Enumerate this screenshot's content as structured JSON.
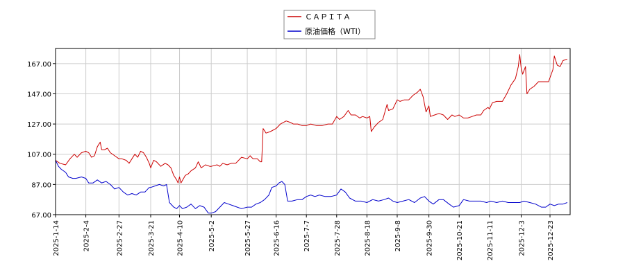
{
  "chart_data": {
    "type": "line",
    "ylim": [
      67,
      177
    ],
    "y_ticks": [
      "67.00",
      "87.00",
      "107.00",
      "127.00",
      "147.00",
      "167.00"
    ],
    "x_ticks": [
      "2025-1-14",
      "2025-2-4",
      "2025-2-27",
      "2025-3-21",
      "2025-4-10",
      "2025-5-2",
      "2025-5-27",
      "2025-6-16",
      "2025-7-7",
      "2025-7-28",
      "2025-8-18",
      "2025-9-8",
      "2025-9-30",
      "2025-10-21",
      "2025-11-11",
      "2025-12-3",
      "2025-12-23"
    ],
    "grid": true,
    "legend_position": "top-center",
    "series": [
      {
        "name": "ＣＡＰＩＴＡ",
        "color": "#cc0000",
        "points": [
          [
            "2025-1-14",
            103
          ],
          [
            "2025-1-17",
            101
          ],
          [
            "2025-1-21",
            100
          ],
          [
            "2025-1-24",
            104
          ],
          [
            "2025-1-27",
            107
          ],
          [
            "2025-1-29",
            105
          ],
          [
            "2025-2-1",
            108
          ],
          [
            "2025-2-4",
            109
          ],
          [
            "2025-2-6",
            108
          ],
          [
            "2025-2-8",
            105
          ],
          [
            "2025-2-10",
            106
          ],
          [
            "2025-2-12",
            112
          ],
          [
            "2025-2-14",
            115
          ],
          [
            "2025-2-15",
            110
          ],
          [
            "2025-2-17",
            110
          ],
          [
            "2025-2-19",
            111
          ],
          [
            "2025-2-21",
            108
          ],
          [
            "2025-2-24",
            106
          ],
          [
            "2025-2-27",
            104
          ],
          [
            "2025-3-1",
            104
          ],
          [
            "2025-3-4",
            103
          ],
          [
            "2025-3-6",
            101
          ],
          [
            "2025-3-8",
            104
          ],
          [
            "2025-3-10",
            107
          ],
          [
            "2025-3-12",
            105
          ],
          [
            "2025-3-14",
            109
          ],
          [
            "2025-3-16",
            108
          ],
          [
            "2025-3-18",
            105
          ],
          [
            "2025-3-20",
            101
          ],
          [
            "2025-3-21",
            98
          ],
          [
            "2025-3-23",
            103
          ],
          [
            "2025-3-25",
            102
          ],
          [
            "2025-3-28",
            99
          ],
          [
            "2025-3-31",
            101
          ],
          [
            "2025-4-2",
            100
          ],
          [
            "2025-4-4",
            98
          ],
          [
            "2025-4-6",
            93
          ],
          [
            "2025-4-8",
            90
          ],
          [
            "2025-4-9",
            88
          ],
          [
            "2025-4-10",
            92
          ],
          [
            "2025-4-11",
            88
          ],
          [
            "2025-4-14",
            93
          ],
          [
            "2025-4-16",
            94
          ],
          [
            "2025-4-18",
            96
          ],
          [
            "2025-4-21",
            98
          ],
          [
            "2025-4-23",
            102
          ],
          [
            "2025-4-25",
            98
          ],
          [
            "2025-4-28",
            100
          ],
          [
            "2025-5-1",
            99
          ],
          [
            "2025-5-2",
            99
          ],
          [
            "2025-5-6",
            100
          ],
          [
            "2025-5-8",
            99
          ],
          [
            "2025-5-10",
            101
          ],
          [
            "2025-5-13",
            100
          ],
          [
            "2025-5-16",
            101
          ],
          [
            "2025-5-19",
            101
          ],
          [
            "2025-5-21",
            103
          ],
          [
            "2025-5-23",
            105
          ],
          [
            "2025-5-27",
            104
          ],
          [
            "2025-5-29",
            106
          ],
          [
            "2025-5-31",
            104
          ],
          [
            "2025-6-3",
            104
          ],
          [
            "2025-6-5",
            102
          ],
          [
            "2025-6-6",
            102
          ],
          [
            "2025-6-7",
            124
          ],
          [
            "2025-6-9",
            121
          ],
          [
            "2025-6-12",
            122
          ],
          [
            "2025-6-16",
            124
          ],
          [
            "2025-6-19",
            127
          ],
          [
            "2025-6-23",
            129
          ],
          [
            "2025-6-26",
            128
          ],
          [
            "2025-6-28",
            127
          ],
          [
            "2025-7-1",
            127
          ],
          [
            "2025-7-4",
            126
          ],
          [
            "2025-7-7",
            126
          ],
          [
            "2025-7-10",
            127
          ],
          [
            "2025-7-14",
            126
          ],
          [
            "2025-7-18",
            126
          ],
          [
            "2025-7-22",
            127
          ],
          [
            "2025-7-25",
            127
          ],
          [
            "2025-7-28",
            132
          ],
          [
            "2025-7-30",
            130
          ],
          [
            "2025-8-2",
            132
          ],
          [
            "2025-8-5",
            136
          ],
          [
            "2025-8-7",
            133
          ],
          [
            "2025-8-10",
            133
          ],
          [
            "2025-8-13",
            131
          ],
          [
            "2025-8-15",
            132
          ],
          [
            "2025-8-18",
            131
          ],
          [
            "2025-8-20",
            132
          ],
          [
            "2025-8-21",
            122
          ],
          [
            "2025-8-23",
            125
          ],
          [
            "2025-8-26",
            128
          ],
          [
            "2025-8-29",
            130
          ],
          [
            "2025-9-1",
            140
          ],
          [
            "2025-9-2",
            136
          ],
          [
            "2025-9-5",
            137
          ],
          [
            "2025-9-8",
            143
          ],
          [
            "2025-9-10",
            142
          ],
          [
            "2025-9-13",
            143
          ],
          [
            "2025-9-16",
            143
          ],
          [
            "2025-9-19",
            146
          ],
          [
            "2025-9-22",
            148
          ],
          [
            "2025-9-24",
            150
          ],
          [
            "2025-9-26",
            145
          ],
          [
            "2025-9-28",
            135
          ],
          [
            "2025-9-30",
            139
          ],
          [
            "2025-10-1",
            132
          ],
          [
            "2025-10-4",
            133
          ],
          [
            "2025-10-7",
            134
          ],
          [
            "2025-10-10",
            133
          ],
          [
            "2025-10-13",
            130
          ],
          [
            "2025-10-16",
            133
          ],
          [
            "2025-10-18",
            132
          ],
          [
            "2025-10-21",
            133
          ],
          [
            "2025-10-24",
            131
          ],
          [
            "2025-10-27",
            131
          ],
          [
            "2025-10-30",
            132
          ],
          [
            "2025-11-2",
            133
          ],
          [
            "2025-11-5",
            133
          ],
          [
            "2025-11-7",
            136
          ],
          [
            "2025-11-10",
            138
          ],
          [
            "2025-11-11",
            137
          ],
          [
            "2025-11-13",
            141
          ],
          [
            "2025-11-16",
            142
          ],
          [
            "2025-11-20",
            142
          ],
          [
            "2025-11-23",
            147
          ],
          [
            "2025-11-26",
            153
          ],
          [
            "2025-11-29",
            157
          ],
          [
            "2025-12-1",
            165
          ],
          [
            "2025-12-2",
            173
          ],
          [
            "2025-12-3",
            164
          ],
          [
            "2025-12-4",
            160
          ],
          [
            "2025-12-6",
            165
          ],
          [
            "2025-12-7",
            147
          ],
          [
            "2025-12-9",
            150
          ],
          [
            "2025-12-12",
            152
          ],
          [
            "2025-12-15",
            155
          ],
          [
            "2025-12-18",
            155
          ],
          [
            "2025-12-22",
            155
          ],
          [
            "2025-12-25",
            163
          ],
          [
            "2025-12-26",
            172
          ],
          [
            "2025-12-28",
            166
          ],
          [
            "2025-12-30",
            165
          ],
          [
            "2026-1-1",
            169
          ],
          [
            "2026-1-4",
            170
          ]
        ]
      },
      {
        "name": "原油価格（WTI）",
        "color": "#0000cc",
        "points": [
          [
            "2025-1-14",
            103
          ],
          [
            "2025-1-16",
            99
          ],
          [
            "2025-1-18",
            97
          ],
          [
            "2025-1-21",
            95
          ],
          [
            "2025-1-23",
            92
          ],
          [
            "2025-1-26",
            91
          ],
          [
            "2025-1-28",
            91
          ],
          [
            "2025-2-1",
            92
          ],
          [
            "2025-2-4",
            91
          ],
          [
            "2025-2-6",
            88
          ],
          [
            "2025-2-9",
            88
          ],
          [
            "2025-2-12",
            90
          ],
          [
            "2025-2-15",
            88
          ],
          [
            "2025-2-18",
            89
          ],
          [
            "2025-2-21",
            87
          ],
          [
            "2025-2-24",
            84
          ],
          [
            "2025-2-27",
            85
          ],
          [
            "2025-3-2",
            82
          ],
          [
            "2025-3-5",
            80
          ],
          [
            "2025-3-8",
            81
          ],
          [
            "2025-3-11",
            80
          ],
          [
            "2025-3-14",
            82
          ],
          [
            "2025-3-17",
            82
          ],
          [
            "2025-3-20",
            85
          ],
          [
            "2025-3-21",
            85
          ],
          [
            "2025-3-24",
            86
          ],
          [
            "2025-3-27",
            87
          ],
          [
            "2025-3-30",
            86
          ],
          [
            "2025-4-1",
            87
          ],
          [
            "2025-4-3",
            75
          ],
          [
            "2025-4-6",
            72
          ],
          [
            "2025-4-8",
            71
          ],
          [
            "2025-4-10",
            73
          ],
          [
            "2025-4-12",
            71
          ],
          [
            "2025-4-15",
            72
          ],
          [
            "2025-4-18",
            74
          ],
          [
            "2025-4-21",
            71
          ],
          [
            "2025-4-24",
            73
          ],
          [
            "2025-4-27",
            72
          ],
          [
            "2025-4-30",
            68
          ],
          [
            "2025-5-2",
            68
          ],
          [
            "2025-5-5",
            69
          ],
          [
            "2025-5-8",
            72
          ],
          [
            "2025-5-11",
            75
          ],
          [
            "2025-5-14",
            74
          ],
          [
            "2025-5-17",
            73
          ],
          [
            "2025-5-20",
            72
          ],
          [
            "2025-5-23",
            71
          ],
          [
            "2025-5-27",
            72
          ],
          [
            "2025-5-30",
            72
          ],
          [
            "2025-6-2",
            74
          ],
          [
            "2025-6-5",
            75
          ],
          [
            "2025-6-8",
            77
          ],
          [
            "2025-6-11",
            80
          ],
          [
            "2025-6-13",
            85
          ],
          [
            "2025-6-16",
            86
          ],
          [
            "2025-6-18",
            88
          ],
          [
            "2025-6-20",
            89
          ],
          [
            "2025-6-22",
            87
          ],
          [
            "2025-6-24",
            76
          ],
          [
            "2025-6-27",
            76
          ],
          [
            "2025-7-1",
            77
          ],
          [
            "2025-7-4",
            77
          ],
          [
            "2025-7-7",
            79
          ],
          [
            "2025-7-10",
            80
          ],
          [
            "2025-7-13",
            79
          ],
          [
            "2025-7-16",
            80
          ],
          [
            "2025-7-20",
            79
          ],
          [
            "2025-7-24",
            79
          ],
          [
            "2025-7-28",
            80
          ],
          [
            "2025-7-31",
            84
          ],
          [
            "2025-8-3",
            82
          ],
          [
            "2025-8-6",
            78
          ],
          [
            "2025-8-10",
            76
          ],
          [
            "2025-8-14",
            76
          ],
          [
            "2025-8-18",
            75
          ],
          [
            "2025-8-22",
            77
          ],
          [
            "2025-8-26",
            76
          ],
          [
            "2025-8-30",
            77
          ],
          [
            "2025-9-2",
            78
          ],
          [
            "2025-9-5",
            76
          ],
          [
            "2025-9-8",
            75
          ],
          [
            "2025-9-12",
            76
          ],
          [
            "2025-9-16",
            77
          ],
          [
            "2025-9-20",
            75
          ],
          [
            "2025-9-24",
            78
          ],
          [
            "2025-9-27",
            79
          ],
          [
            "2025-9-30",
            76
          ],
          [
            "2025-10-3",
            74
          ],
          [
            "2025-10-7",
            77
          ],
          [
            "2025-10-10",
            77
          ],
          [
            "2025-10-14",
            74
          ],
          [
            "2025-10-17",
            72
          ],
          [
            "2025-10-21",
            73
          ],
          [
            "2025-10-24",
            77
          ],
          [
            "2025-10-28",
            76
          ],
          [
            "2025-11-1",
            76
          ],
          [
            "2025-11-5",
            76
          ],
          [
            "2025-11-9",
            75
          ],
          [
            "2025-11-12",
            76
          ],
          [
            "2025-11-16",
            75
          ],
          [
            "2025-11-20",
            76
          ],
          [
            "2025-11-24",
            75
          ],
          [
            "2025-11-28",
            75
          ],
          [
            "2025-12-2",
            75
          ],
          [
            "2025-12-5",
            76
          ],
          [
            "2025-12-9",
            75
          ],
          [
            "2025-12-13",
            74
          ],
          [
            "2025-12-17",
            72
          ],
          [
            "2025-12-20",
            72
          ],
          [
            "2025-12-23",
            74
          ],
          [
            "2025-12-26",
            73
          ],
          [
            "2025-12-29",
            74
          ],
          [
            "2026-1-1",
            74
          ],
          [
            "2026-1-4",
            75
          ]
        ]
      }
    ]
  }
}
